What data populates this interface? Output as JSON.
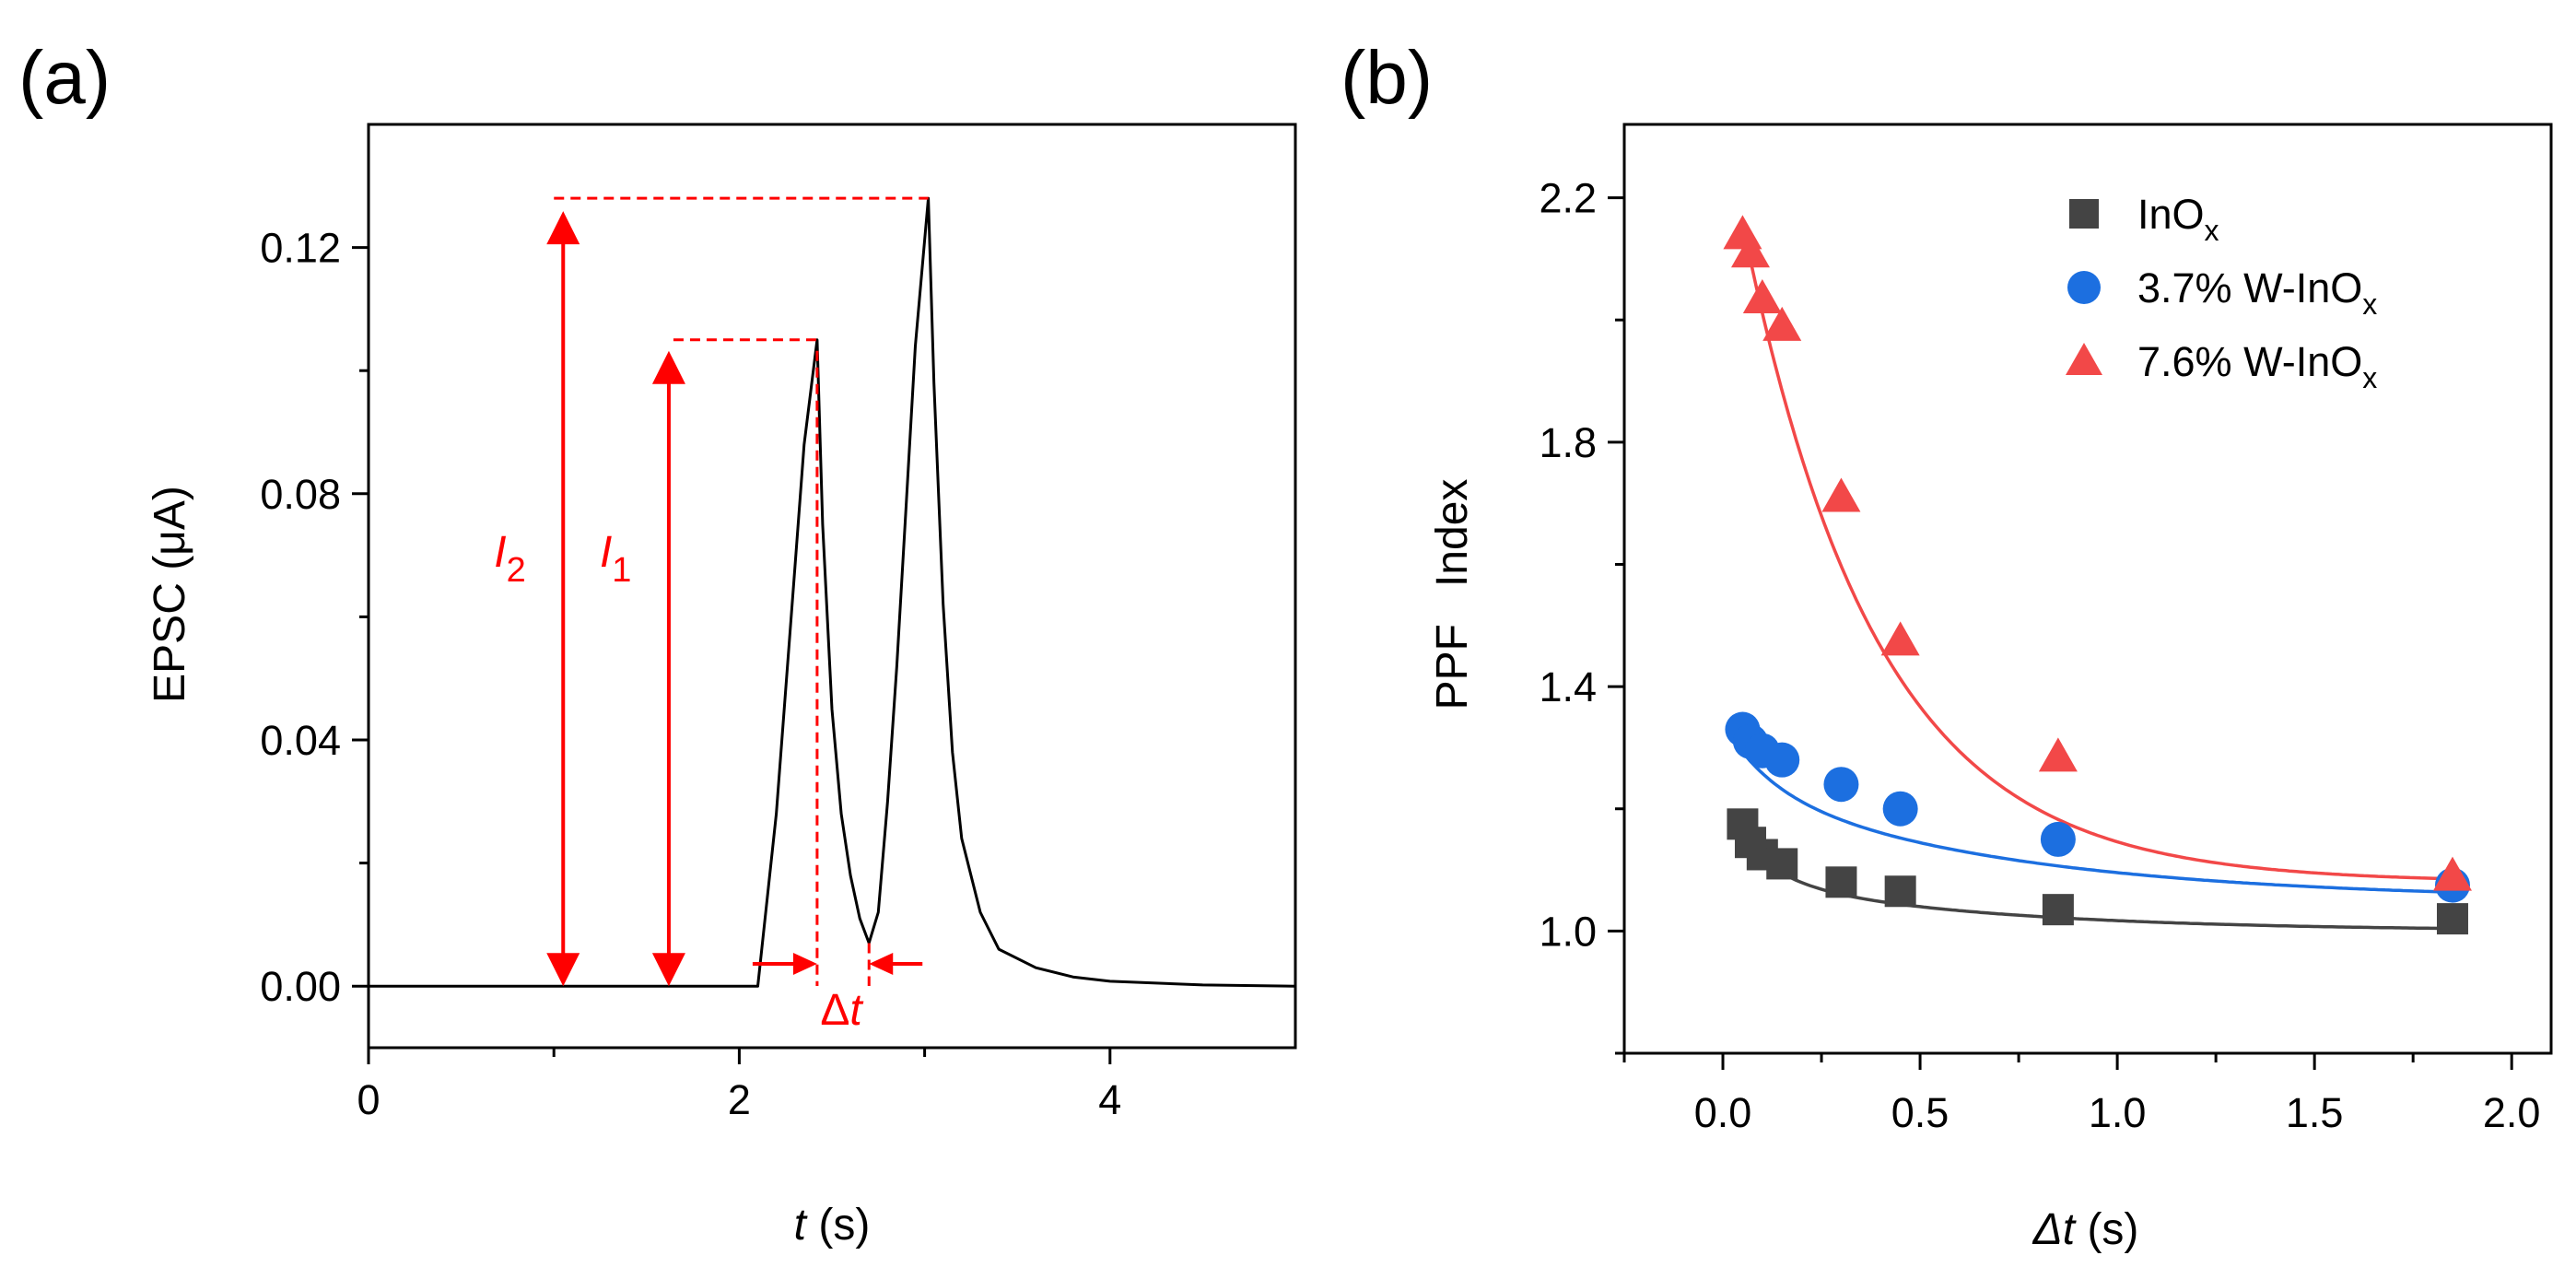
{
  "colors": {
    "annotation": "#ff0000",
    "inox": "#444444",
    "w37": "#1c6fe0",
    "w76": "#f24848",
    "axis": "#000000"
  },
  "chart_data": [
    {
      "panel_label": "(a)",
      "type": "line",
      "xlabel_italic": "t",
      "xlabel_rest": " (s)",
      "ylabel": "EPSC (μA)",
      "xlim": [
        0,
        5
      ],
      "ylim": [
        -0.01,
        0.14
      ],
      "xticks": [
        0,
        2,
        4
      ],
      "xtick_labels": [
        "0",
        "2",
        "4"
      ],
      "yticks": [
        0.0,
        0.04,
        0.08,
        0.12
      ],
      "ytick_labels": [
        "0.00",
        "0.04",
        "0.08",
        "0.12"
      ],
      "grid": false,
      "series": [
        {
          "x": [
            0,
            2.1,
            2.2,
            2.3,
            2.35,
            2.42,
            2.45,
            2.5,
            2.55,
            2.6,
            2.65,
            2.7,
            2.75,
            2.8,
            2.85,
            2.9,
            2.95,
            3.02,
            3.05,
            3.1,
            3.15,
            3.2,
            3.3,
            3.4,
            3.6,
            3.8,
            4.0,
            4.5,
            5.0
          ],
          "y": [
            0,
            0,
            0.028,
            0.068,
            0.088,
            0.105,
            0.075,
            0.045,
            0.028,
            0.018,
            0.011,
            0.007,
            0.012,
            0.03,
            0.052,
            0.078,
            0.104,
            0.128,
            0.098,
            0.062,
            0.038,
            0.024,
            0.012,
            0.006,
            0.003,
            0.0015,
            0.0008,
            0.0002,
            0
          ]
        }
      ],
      "annotations": {
        "I1_label": "1",
        "I2_label": "2",
        "I_symbol": "I",
        "delta_t_label": "Δt",
        "I1_peak": 0.105,
        "I2_peak": 0.128,
        "I1_x": 1.62,
        "I2_x": 1.05,
        "pulse1_end_x": 2.42,
        "pulse2_start_x": 2.7
      }
    },
    {
      "panel_label": "(b)",
      "type": "scatter",
      "xlabel_italic": "Δt",
      "xlabel_rest": " (s)",
      "ylabel": "PPF   Index",
      "xlim": [
        -0.25,
        2.1
      ],
      "ylim": [
        0.8,
        2.32
      ],
      "xticks": [
        0.0,
        0.5,
        1.0,
        1.5,
        2.0
      ],
      "xtick_labels": [
        "0.0",
        "0.5",
        "1.0",
        "1.5",
        "2.0"
      ],
      "yticks": [
        1.0,
        1.4,
        1.8,
        2.2
      ],
      "ytick_labels": [
        "1.0",
        "1.4",
        "1.8",
        "2.2"
      ],
      "grid": false,
      "legend_position": "top-right",
      "series": [
        {
          "name_main": "InO",
          "name_pre": "",
          "name_sub": "x",
          "marker": "square",
          "color_key": "inox",
          "x": [
            0.05,
            0.07,
            0.1,
            0.15,
            0.3,
            0.45,
            0.85,
            1.85
          ],
          "y": [
            1.175,
            1.145,
            1.125,
            1.11,
            1.08,
            1.065,
            1.035,
            1.02
          ],
          "fit": {
            "a": 1.0,
            "b": 0.09,
            "tau": 0.6,
            "c": 0.11,
            "tau2": 0.1
          }
        },
        {
          "name_pre": "3.7% W-",
          "name_main": "InO",
          "name_sub": "x",
          "marker": "circle",
          "color_key": "w37",
          "x": [
            0.05,
            0.07,
            0.1,
            0.15,
            0.3,
            0.45,
            0.85,
            1.85
          ],
          "y": [
            1.33,
            1.31,
            1.295,
            1.28,
            1.24,
            1.2,
            1.15,
            1.075
          ],
          "fit": {
            "a": 1.05,
            "b": 0.19,
            "tau": 0.7,
            "c": 0.1,
            "tau2": 0.12
          }
        },
        {
          "name_pre": "7.6% W-",
          "name_main": "InO",
          "name_sub": "x",
          "marker": "triangle",
          "color_key": "w76",
          "x": [
            0.05,
            0.07,
            0.1,
            0.15,
            0.3,
            0.45,
            0.85,
            1.85
          ],
          "y": [
            2.14,
            2.11,
            2.035,
            1.99,
            1.71,
            1.475,
            1.285,
            1.09
          ],
          "fit": {
            "a": 1.08,
            "b": 1.25,
            "tau": 0.34,
            "c": 0.0,
            "tau2": 0.1
          }
        }
      ]
    }
  ]
}
